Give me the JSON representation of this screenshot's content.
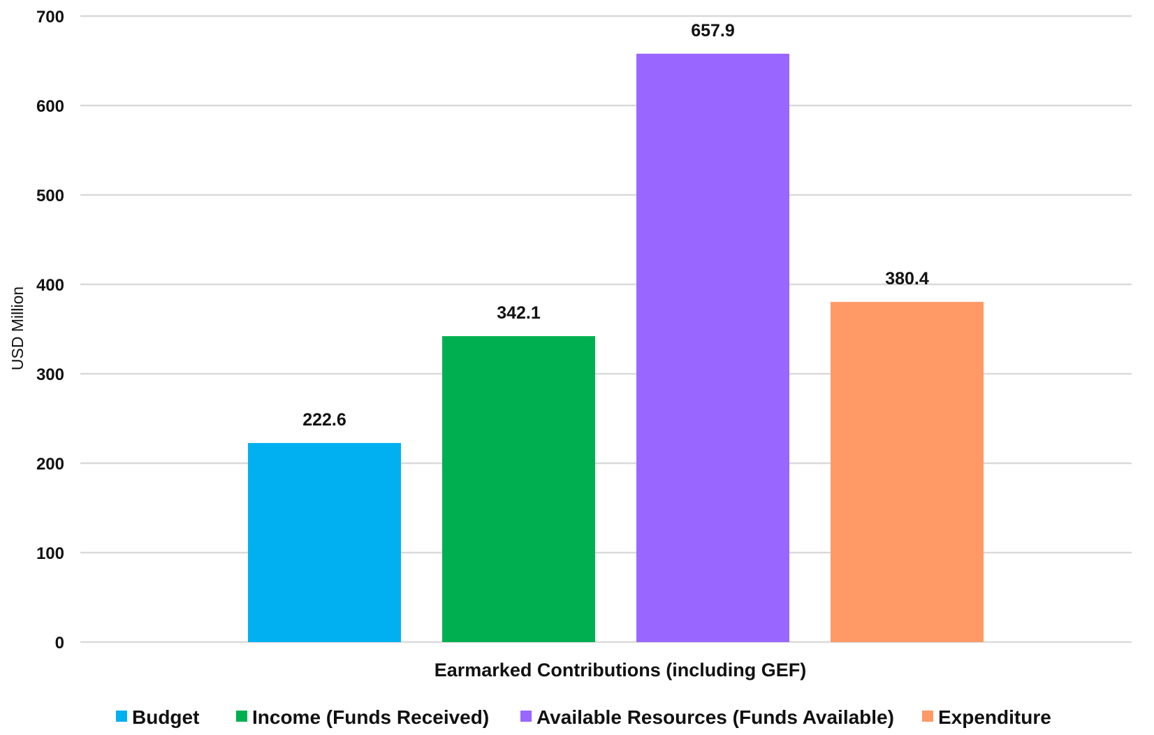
{
  "chart_data": {
    "type": "bar",
    "title": "",
    "xlabel": "Earmarked Contributions (including GEF)",
    "ylabel": "USD Million",
    "ylim": [
      0,
      700
    ],
    "yticks": [
      0,
      100,
      200,
      300,
      400,
      500,
      600,
      700
    ],
    "grid": true,
    "legend_position": "bottom",
    "categories": [
      "Earmarked Contributions (including GEF)"
    ],
    "series": [
      {
        "name": "Budget",
        "values": [
          222.6
        ],
        "label": "222.6",
        "color": "#00b0f0"
      },
      {
        "name": "Income (Funds Received)",
        "values": [
          342.1
        ],
        "label": "342.1",
        "color": "#00b050"
      },
      {
        "name": "Available Resources (Funds Available)",
        "values": [
          657.9
        ],
        "label": "657.9",
        "color": "#9966ff"
      },
      {
        "name": "Expenditure",
        "values": [
          380.4
        ],
        "label": "380.4",
        "color": "#ff9966"
      }
    ]
  }
}
